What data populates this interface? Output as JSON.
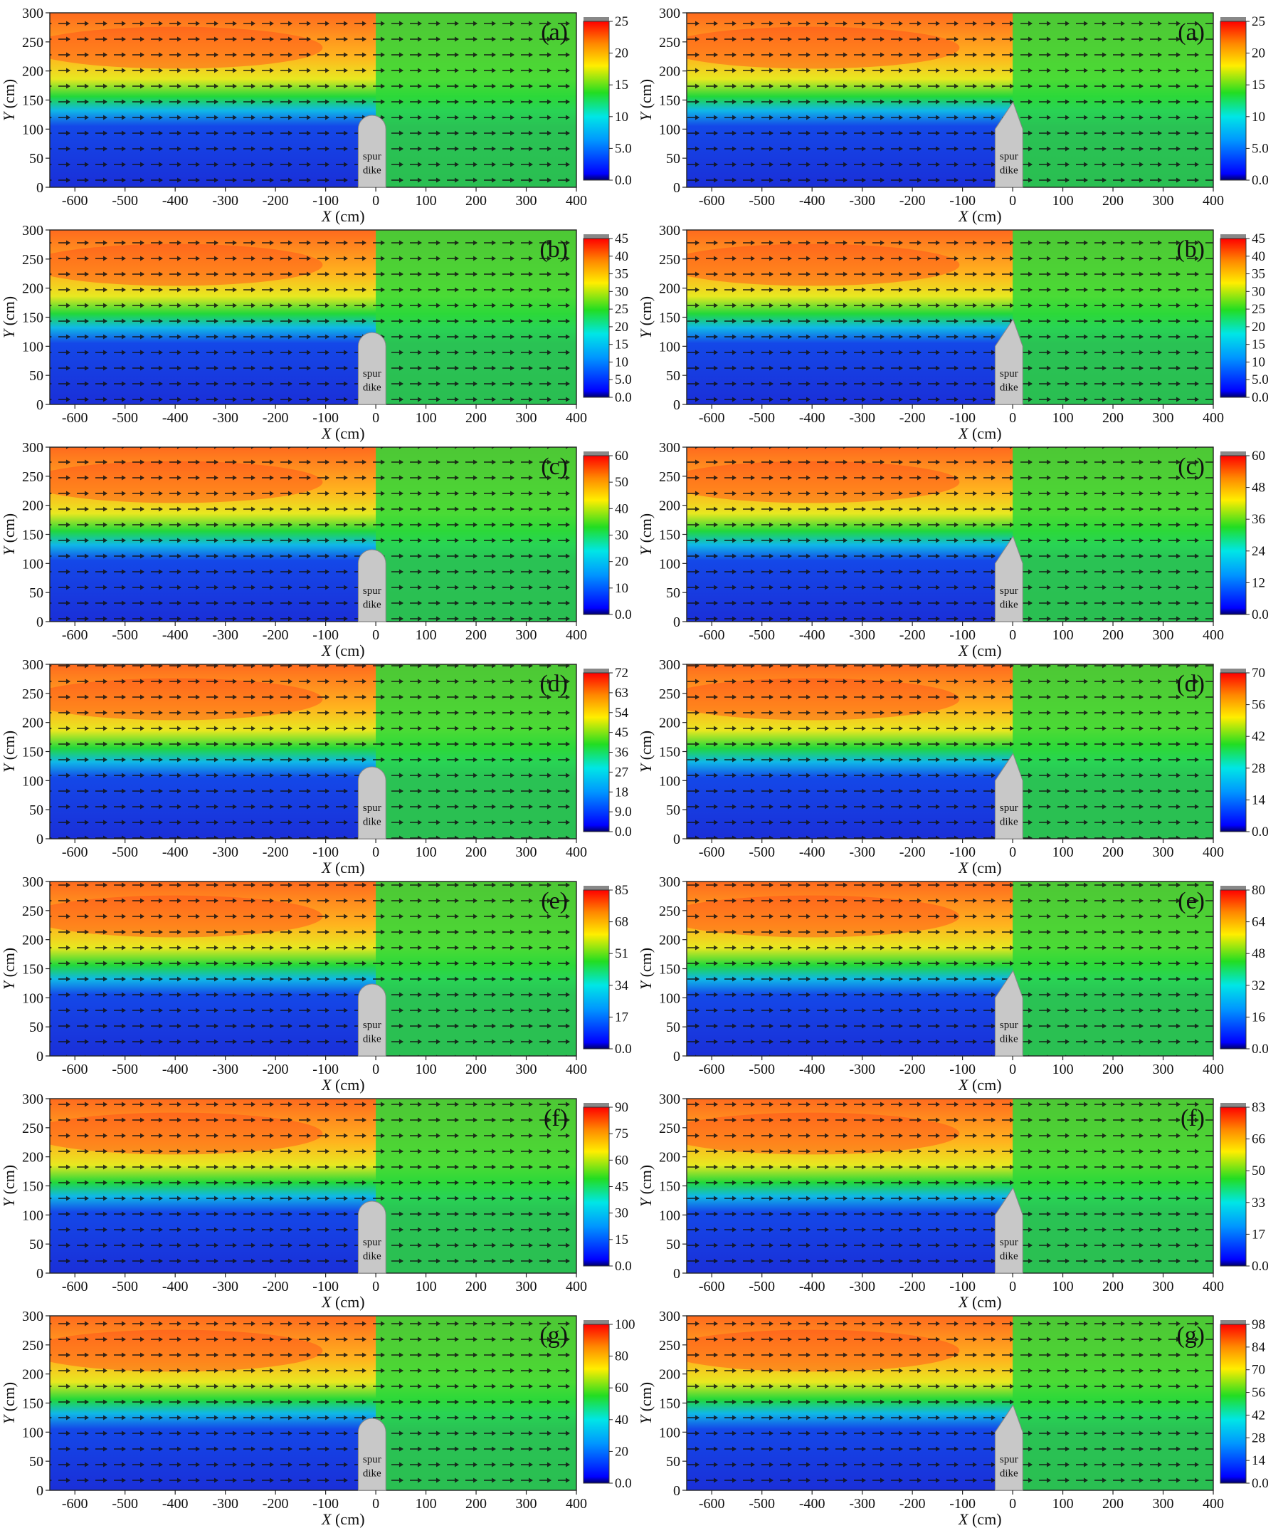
{
  "figure": {
    "x_label_var": "X",
    "x_label_unit": " (cm)",
    "y_label_var": "Y",
    "y_label_unit": " (cm)",
    "dike_label_line1": "spur",
    "dike_label_line2": "dike"
  },
  "chart_data": [
    {
      "type": "heatmap",
      "column": "left",
      "label": "(a)",
      "xlim": [
        -650,
        400
      ],
      "ylim": [
        0,
        300
      ],
      "xticks": [
        -600,
        -500,
        -400,
        -300,
        -200,
        -100,
        0,
        100,
        200,
        300,
        400
      ],
      "yticks": [
        0,
        50,
        100,
        150,
        200,
        250,
        300
      ],
      "colorbar_ticks": [
        "0.0",
        "5.0",
        "10",
        "15",
        "20",
        "25"
      ],
      "colorbar_max": 25,
      "dike_shape": "round"
    },
    {
      "type": "heatmap",
      "column": "right",
      "label": "(a)",
      "xlim": [
        -650,
        400
      ],
      "ylim": [
        0,
        300
      ],
      "xticks": [
        -600,
        -500,
        -400,
        -300,
        -200,
        -100,
        0,
        100,
        200,
        300,
        400
      ],
      "yticks": [
        0,
        50,
        100,
        150,
        200,
        250,
        300
      ],
      "colorbar_ticks": [
        "0.0",
        "5.0",
        "10",
        "15",
        "20",
        "25"
      ],
      "colorbar_max": 25,
      "dike_shape": "pointed"
    },
    {
      "type": "heatmap",
      "column": "left",
      "label": "(b)",
      "xlim": [
        -650,
        400
      ],
      "ylim": [
        0,
        300
      ],
      "xticks": [
        -600,
        -500,
        -400,
        -300,
        -200,
        -100,
        0,
        100,
        200,
        300,
        400
      ],
      "yticks": [
        0,
        50,
        100,
        150,
        200,
        250,
        300
      ],
      "colorbar_ticks": [
        "0.0",
        "5.0",
        "10",
        "15",
        "20",
        "25",
        "30",
        "35",
        "40",
        "45"
      ],
      "colorbar_max": 45,
      "dike_shape": "round"
    },
    {
      "type": "heatmap",
      "column": "right",
      "label": "(b)",
      "xlim": [
        -650,
        400
      ],
      "ylim": [
        0,
        300
      ],
      "xticks": [
        -600,
        -500,
        -400,
        -300,
        -200,
        -100,
        0,
        100,
        200,
        300,
        400
      ],
      "yticks": [
        0,
        50,
        100,
        150,
        200,
        250,
        300
      ],
      "colorbar_ticks": [
        "0.0",
        "5.0",
        "10",
        "15",
        "20",
        "25",
        "30",
        "35",
        "40",
        "45"
      ],
      "colorbar_max": 45,
      "dike_shape": "pointed"
    },
    {
      "type": "heatmap",
      "column": "left",
      "label": "(c)",
      "xlim": [
        -650,
        400
      ],
      "ylim": [
        0,
        300
      ],
      "xticks": [
        -600,
        -500,
        -400,
        -300,
        -200,
        -100,
        0,
        100,
        200,
        300,
        400
      ],
      "yticks": [
        0,
        50,
        100,
        150,
        200,
        250,
        300
      ],
      "colorbar_ticks": [
        "0.0",
        "10",
        "20",
        "30",
        "40",
        "50",
        "60"
      ],
      "colorbar_max": 60,
      "dike_shape": "round"
    },
    {
      "type": "heatmap",
      "column": "right",
      "label": "(c)",
      "xlim": [
        -650,
        400
      ],
      "ylim": [
        0,
        300
      ],
      "xticks": [
        -600,
        -500,
        -400,
        -300,
        -200,
        -100,
        0,
        100,
        200,
        300,
        400
      ],
      "yticks": [
        0,
        50,
        100,
        150,
        200,
        250,
        300
      ],
      "colorbar_ticks": [
        "0.0",
        "12",
        "24",
        "36",
        "48",
        "60"
      ],
      "colorbar_max": 60,
      "dike_shape": "pointed"
    },
    {
      "type": "heatmap",
      "column": "left",
      "label": "(d)",
      "xlim": [
        -650,
        400
      ],
      "ylim": [
        0,
        300
      ],
      "xticks": [
        -600,
        -500,
        -400,
        -300,
        -200,
        -100,
        0,
        100,
        200,
        300,
        400
      ],
      "yticks": [
        0,
        50,
        100,
        150,
        200,
        250,
        300
      ],
      "colorbar_ticks": [
        "0.0",
        "9.0",
        "18",
        "27",
        "36",
        "45",
        "54",
        "63",
        "72"
      ],
      "colorbar_max": 72,
      "dike_shape": "round"
    },
    {
      "type": "heatmap",
      "column": "right",
      "label": "(d)",
      "xlim": [
        -650,
        400
      ],
      "ylim": [
        0,
        300
      ],
      "xticks": [
        -600,
        -500,
        -400,
        -300,
        -200,
        -100,
        0,
        100,
        200,
        300,
        400
      ],
      "yticks": [
        0,
        50,
        100,
        150,
        200,
        250,
        300
      ],
      "colorbar_ticks": [
        "0.0",
        "14",
        "28",
        "42",
        "56",
        "70"
      ],
      "colorbar_max": 70,
      "dike_shape": "pointed"
    },
    {
      "type": "heatmap",
      "column": "left",
      "label": "(e)",
      "xlim": [
        -650,
        400
      ],
      "ylim": [
        0,
        300
      ],
      "xticks": [
        -600,
        -500,
        -400,
        -300,
        -200,
        -100,
        0,
        100,
        200,
        300,
        400
      ],
      "yticks": [
        0,
        50,
        100,
        150,
        200,
        250,
        300
      ],
      "colorbar_ticks": [
        "0.0",
        "17",
        "34",
        "51",
        "68",
        "85"
      ],
      "colorbar_max": 85,
      "dike_shape": "round"
    },
    {
      "type": "heatmap",
      "column": "right",
      "label": "(e)",
      "xlim": [
        -650,
        400
      ],
      "ylim": [
        0,
        300
      ],
      "xticks": [
        -600,
        -500,
        -400,
        -300,
        -200,
        -100,
        0,
        100,
        200,
        300,
        400
      ],
      "yticks": [
        0,
        50,
        100,
        150,
        200,
        250,
        300
      ],
      "colorbar_ticks": [
        "0.0",
        "16",
        "32",
        "48",
        "64",
        "80"
      ],
      "colorbar_max": 80,
      "dike_shape": "pointed"
    },
    {
      "type": "heatmap",
      "column": "left",
      "label": "(f)",
      "xlim": [
        -650,
        400
      ],
      "ylim": [
        0,
        300
      ],
      "xticks": [
        -600,
        -500,
        -400,
        -300,
        -200,
        -100,
        0,
        100,
        200,
        300,
        400
      ],
      "yticks": [
        0,
        50,
        100,
        150,
        200,
        250,
        300
      ],
      "colorbar_ticks": [
        "0.0",
        "15",
        "30",
        "45",
        "60",
        "75",
        "90"
      ],
      "colorbar_max": 90,
      "dike_shape": "round"
    },
    {
      "type": "heatmap",
      "column": "right",
      "label": "(f)",
      "xlim": [
        -650,
        400
      ],
      "ylim": [
        0,
        300
      ],
      "xticks": [
        -600,
        -500,
        -400,
        -300,
        -200,
        -100,
        0,
        100,
        200,
        300,
        400
      ],
      "yticks": [
        0,
        50,
        100,
        150,
        200,
        250,
        300
      ],
      "colorbar_ticks": [
        "0.0",
        "17",
        "33",
        "50",
        "66",
        "83"
      ],
      "colorbar_max": 83,
      "dike_shape": "pointed"
    },
    {
      "type": "heatmap",
      "column": "left",
      "label": "(g)",
      "xlim": [
        -650,
        400
      ],
      "ylim": [
        0,
        300
      ],
      "xticks": [
        -600,
        -500,
        -400,
        -300,
        -200,
        -100,
        0,
        100,
        200,
        300,
        400
      ],
      "yticks": [
        0,
        50,
        100,
        150,
        200,
        250,
        300
      ],
      "colorbar_ticks": [
        "0.0",
        "20",
        "40",
        "60",
        "80",
        "100"
      ],
      "colorbar_max": 100,
      "dike_shape": "round"
    },
    {
      "type": "heatmap",
      "column": "right",
      "label": "(g)",
      "xlim": [
        -650,
        400
      ],
      "ylim": [
        0,
        300
      ],
      "xticks": [
        -600,
        -500,
        -400,
        -300,
        -200,
        -100,
        0,
        100,
        200,
        300,
        400
      ],
      "yticks": [
        0,
        50,
        100,
        150,
        200,
        250,
        300
      ],
      "colorbar_ticks": [
        "0.0",
        "14",
        "28",
        "42",
        "56",
        "70",
        "84",
        "98"
      ],
      "colorbar_max": 98,
      "dike_shape": "pointed"
    }
  ]
}
